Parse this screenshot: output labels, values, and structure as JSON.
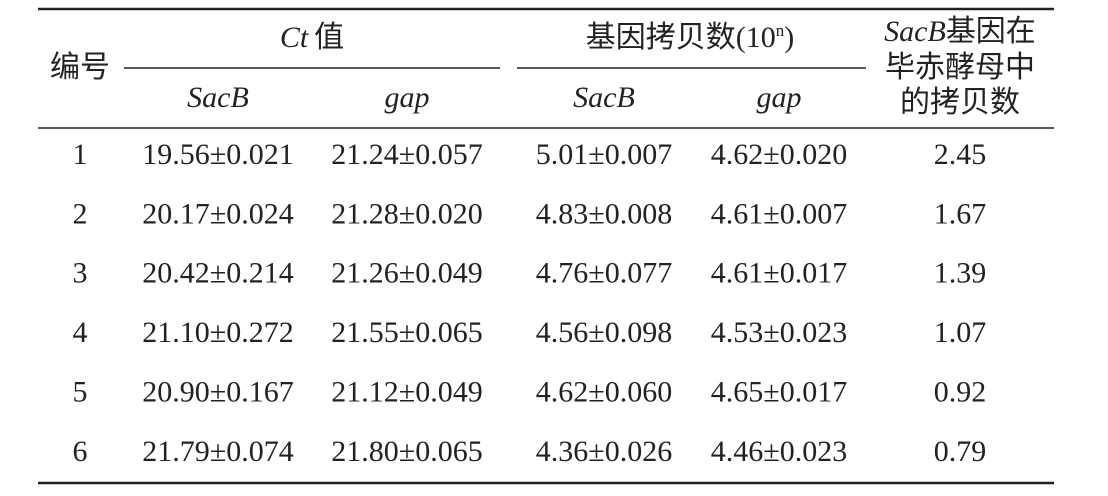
{
  "header": {
    "id": "编号",
    "ct": {
      "italic": "Ct",
      "text": "值"
    },
    "copies": [
      "基因拷贝数(10",
      "n",
      ")"
    ],
    "ratio": [
      "SacB",
      "基因在",
      "毕赤酵母中",
      "的拷贝数"
    ],
    "sub": [
      "SacB",
      "gap",
      "SacB",
      "gap"
    ]
  },
  "table": {
    "rows": [
      [
        "1",
        "19.56±0.021",
        "21.24±0.057",
        "5.01±0.007",
        "4.62±0.020",
        "2.45"
      ],
      [
        "2",
        "20.17±0.024",
        "21.28±0.020",
        "4.83±0.008",
        "4.61±0.007",
        "1.67"
      ],
      [
        "3",
        "20.42±0.214",
        "21.26±0.049",
        "4.76±0.077",
        "4.61±0.017",
        "1.39"
      ],
      [
        "4",
        "21.10±0.272",
        "21.55±0.065",
        "4.56±0.098",
        "4.53±0.023",
        "1.07"
      ],
      [
        "5",
        "20.90±0.167",
        "21.12±0.049",
        "4.62±0.060",
        "4.65±0.017",
        "0.92"
      ],
      [
        "6",
        "21.79±0.074",
        "21.80±0.065",
        "4.36±0.026",
        "4.46±0.023",
        "0.79"
      ]
    ]
  }
}
